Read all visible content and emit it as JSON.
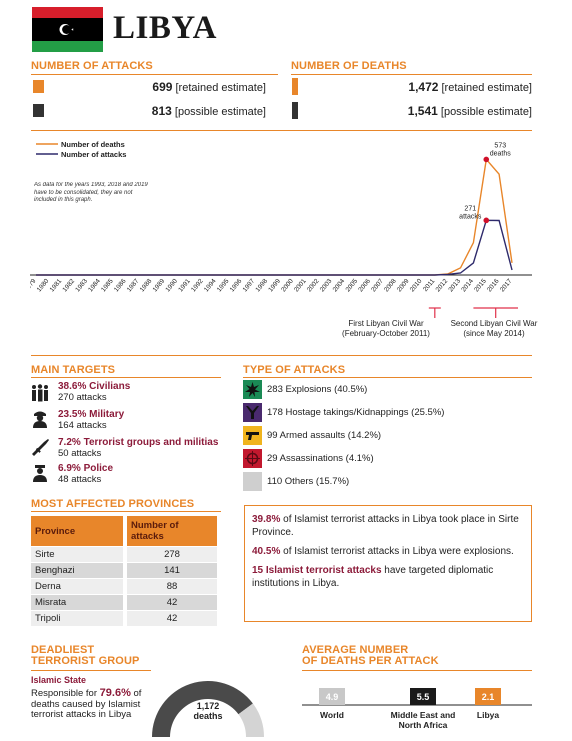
{
  "header": {
    "country": "LIBYA"
  },
  "attacks": {
    "title": "NUMBER OF ATTACKS",
    "retained_value": "699",
    "retained_label": "[retained estimate]",
    "possible_value": "813",
    "possible_label": "[possible estimate]"
  },
  "deaths": {
    "title": "NUMBER OF DEATHS",
    "retained_value": "1,472",
    "retained_label": "[retained estimate]",
    "possible_value": "1,541",
    "possible_label": "[possible estimate]"
  },
  "chart_data": {
    "type": "line",
    "legend": [
      "Number of deaths",
      "Number of attacks"
    ],
    "note": "As data for the years 1993, 2018 and 2019 have to be consolidated, they are not included in this graph.",
    "x": [
      "1979",
      "1980",
      "1981",
      "1982",
      "1983",
      "1984",
      "1985",
      "1986",
      "1987",
      "1988",
      "1989",
      "1990",
      "1991",
      "1992",
      "1994",
      "1995",
      "1996",
      "1997",
      "1998",
      "1999",
      "2000",
      "2001",
      "2002",
      "2003",
      "2004",
      "2005",
      "2006",
      "2007",
      "2008",
      "2009",
      "2010",
      "2011",
      "2012",
      "2013",
      "2014",
      "2015",
      "2016",
      "2017"
    ],
    "series": [
      {
        "name": "Number of deaths",
        "color": "#e8862a",
        "values": [
          0,
          0,
          0,
          0,
          0,
          0,
          0,
          0,
          0,
          0,
          0,
          0,
          0,
          0,
          0,
          0,
          0,
          0,
          0,
          0,
          0,
          0,
          0,
          0,
          0,
          0,
          0,
          0,
          0,
          0,
          0,
          0,
          5,
          35,
          160,
          573,
          500,
          60
        ]
      },
      {
        "name": "Number of attacks",
        "color": "#2e2a6b",
        "values": [
          0,
          0,
          0,
          0,
          0,
          0,
          0,
          0,
          0,
          0,
          0,
          0,
          0,
          0,
          0,
          0,
          0,
          0,
          0,
          0,
          0,
          0,
          0,
          0,
          0,
          0,
          0,
          0,
          0,
          0,
          0,
          0,
          3,
          10,
          60,
          271,
          270,
          25
        ]
      }
    ],
    "annotations": [
      {
        "text": "573",
        "text2": "deaths",
        "year": "2015"
      },
      {
        "text": "271",
        "text2": "attacks",
        "year": "2015"
      }
    ],
    "events": [
      {
        "line1": "First Libyan Civil War",
        "line2": "(February-October 2011)",
        "year": "2011"
      },
      {
        "line1": "Second Libyan Civil War",
        "line2": "(since May 2014)",
        "year": "2014-2017"
      }
    ],
    "ylim": [
      0,
      600
    ]
  },
  "main_targets": {
    "title": "MAIN TARGETS",
    "items": [
      {
        "pct": "38.6% Civilians",
        "count": "270 attacks",
        "icon": "civilians-icon"
      },
      {
        "pct": "23.5% Military",
        "count": "164 attacks",
        "icon": "military-icon"
      },
      {
        "pct": "7.2% Terrorist groups and militias",
        "count": "50 attacks",
        "icon": "rifle-icon"
      },
      {
        "pct": "6.9% Police",
        "count": "48 attacks",
        "icon": "police-icon"
      }
    ]
  },
  "type_of_attacks": {
    "title": "TYPE OF ATTACKS",
    "items": [
      {
        "label": "283 Explosions (40.5%)",
        "color": "#1a8a55",
        "icon": "explosion-icon"
      },
      {
        "label": "178 Hostage takings/Kidnappings (25.5%)",
        "color": "#4a2a6e",
        "icon": "hostage-icon"
      },
      {
        "label": "99 Armed assaults (14.2%)",
        "color": "#f0b41e",
        "icon": "gun-icon"
      },
      {
        "label": "29 Assassinations (4.1%)",
        "color": "#c2182e",
        "icon": "target-icon"
      },
      {
        "label": "110 Others (15.7%)",
        "color": "#cfcfcf",
        "icon": ""
      }
    ]
  },
  "provinces": {
    "title": "MOST AFFECTED PROVINCES",
    "headers": [
      "Province",
      "Number of attacks"
    ],
    "rows": [
      {
        "name": "Sirte",
        "value": "278"
      },
      {
        "name": "Benghazi",
        "value": "141"
      },
      {
        "name": "Derna",
        "value": "88"
      },
      {
        "name": "Misrata",
        "value": "42"
      },
      {
        "name": "Tripoli",
        "value": "42"
      }
    ]
  },
  "facts": [
    {
      "bold": "39.8%",
      "text": " of Islamist terrorist attacks in Libya took place in Sirte Province."
    },
    {
      "bold": "40.5%",
      "text": " of Islamist terrorist attacks in Libya were explosions."
    },
    {
      "bold": "15 Islamist terrorist attacks",
      "text": " have targeted diplomatic institutions in Libya."
    }
  ],
  "deadliest": {
    "title_line1": "DEADLIEST",
    "title_line2": "TERRORIST GROUP",
    "group": "Islamic State",
    "desc_pre": "Responsible for ",
    "desc_pct": "79.6%",
    "desc_post": "of deaths caused by Islamist terrorist attacks in Libya",
    "deaths_value": "1,172",
    "deaths_label": "deaths",
    "share": 0.796
  },
  "avg_deaths": {
    "title_line1": "AVERAGE NUMBER",
    "title_line2": "OF DEATHS PER ATTACK",
    "bars": [
      {
        "value": "4.9",
        "label": "World",
        "label2": "",
        "color": "#c8c8c8"
      },
      {
        "value": "5.5",
        "label": "Middle East and",
        "label2": "North Africa",
        "color": "#1a1a1a"
      },
      {
        "value": "2.1",
        "label": "Libya",
        "label2": "",
        "color": "#e8862a"
      }
    ]
  }
}
